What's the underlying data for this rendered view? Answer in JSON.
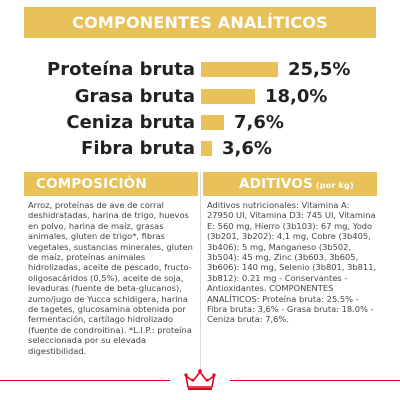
{
  "header": {
    "title": "COMPONENTES ANALÍTICOS"
  },
  "nutrients": [
    {
      "label": "Proteína bruta",
      "value": "25,5%",
      "percent": 25.5
    },
    {
      "label": "Grasa bruta",
      "value": "18,0%",
      "percent": 18.0
    },
    {
      "label": "Ceniza bruta",
      "value": "7,6%",
      "percent": 7.6
    },
    {
      "label": "Fibra bruta",
      "value": "3,6%",
      "percent": 3.6
    }
  ],
  "composicion": {
    "title": "COMPOSICIÓN",
    "text": "Arroz, proteínas de ave de corral deshidratadas, harina de trigo, huevos en polvo, harina de maíz, grasas animales, gluten de trigo*, fibras vegetales, sustancias minerales, gluten de maíz, proteínas animales hidrolizadas, aceite de pescado, fructo-oligosacáridos (0,5%), aceite de soja, levaduras (fuente de beta-glucanos), zumo/jugo de Yucca schidigera, harina de tagetes, glucosamina obtenida por fermentación, cartílago hidrolizado (fuente de condroitina). *L.I.P.: proteína seleccionada por su elevada digestibilidad."
  },
  "aditivos": {
    "title": "ADITIVOS",
    "unit": "(por kg)",
    "text": "Aditivos nutricionales: Vitamina A: 27950 UI, Vitamina D3: 745 UI, Vitamina E: 560 mg, Hierro (3b103): 67 mg, Yodo (3b201, 3b202): 4,1 mg, Cobre (3b405, 3b406): 5 mg, Manganeso (3b502, 3b504): 45 mg, Zinc (3b603, 3b605, 3b606): 140 mg, Selenio (3b801, 3b811, 3b812): 0.21 mg - Conservantes - Antioxidantes. COMPONENTES ANALÍTICOS: Proteína bruta: 25.5% - Fibra bruta: 3,6% - Grasa bruta: 18.0% - Ceniza bruta: 7,6%."
  },
  "brand": {
    "logo": "crown-logo-icon"
  },
  "colors": {
    "accent": "#e8c15a",
    "brand_red": "#e2001a",
    "text": "#222222"
  }
}
